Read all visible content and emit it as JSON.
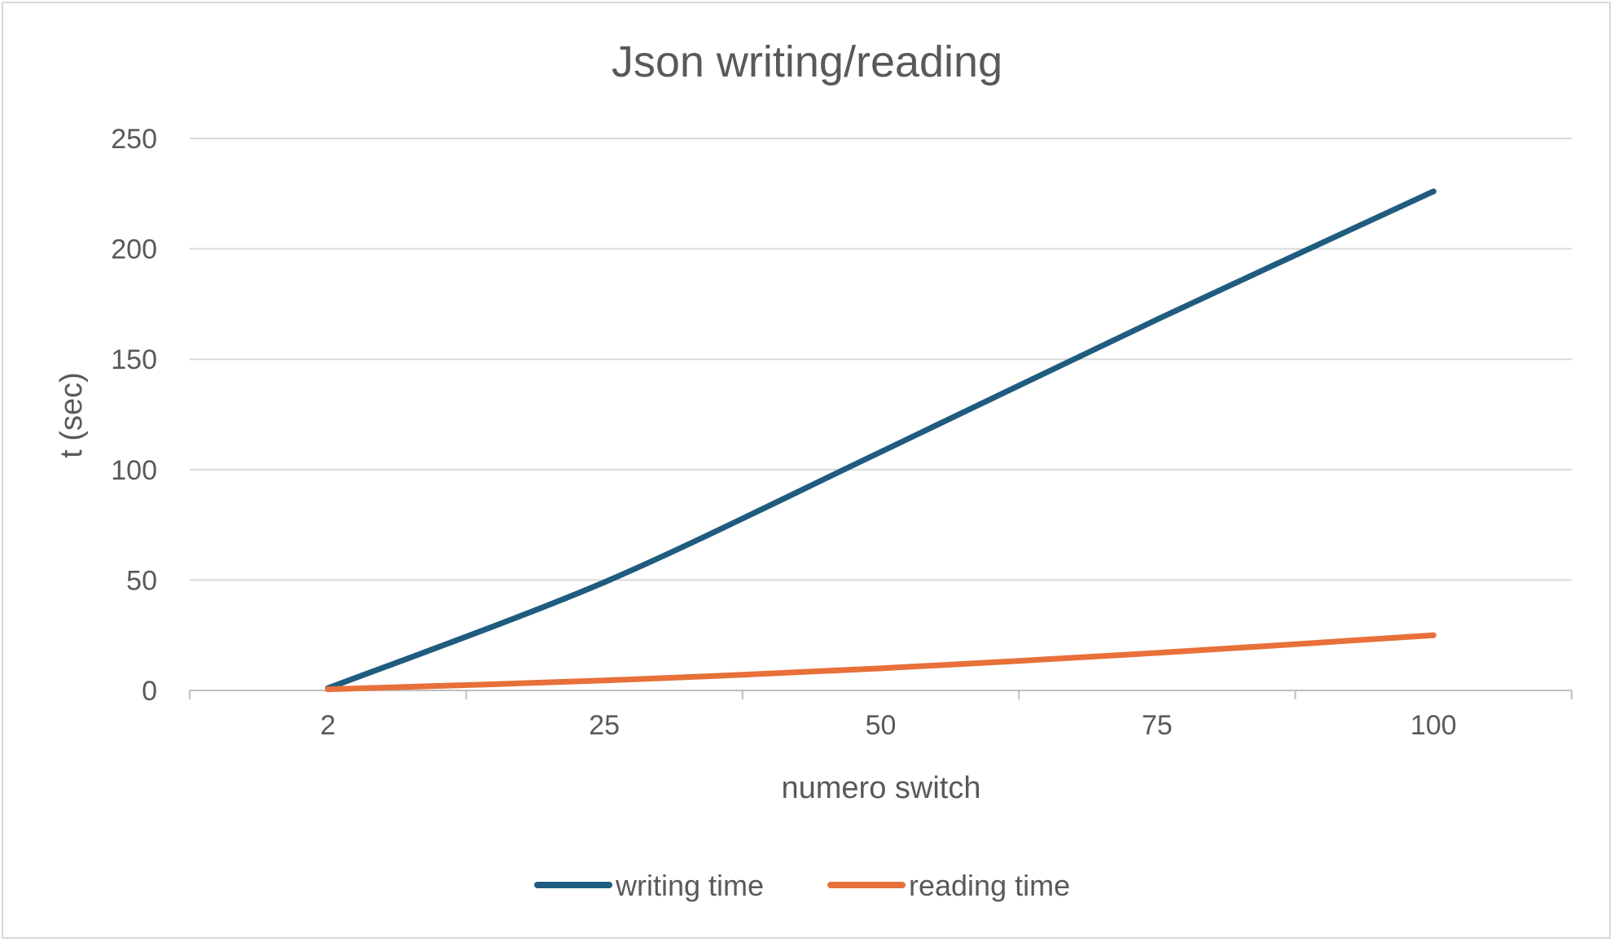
{
  "chart_data": {
    "type": "line",
    "title": "Json writing/reading",
    "xlabel": "numero switch",
    "ylabel": "t (sec)",
    "categories": [
      "2",
      "25",
      "50",
      "75",
      "100"
    ],
    "y_ticks": [
      "0",
      "50",
      "100",
      "150",
      "200",
      "250"
    ],
    "ylim": [
      0,
      250
    ],
    "grid": true,
    "legend_position": "bottom",
    "series": [
      {
        "name": "writing time",
        "color": "#1f5c7f",
        "values": [
          1,
          49,
          108,
          168,
          226
        ]
      },
      {
        "name": "reading time",
        "color": "#e8703a",
        "values": [
          0.5,
          4.5,
          10,
          17,
          25
        ]
      }
    ]
  }
}
